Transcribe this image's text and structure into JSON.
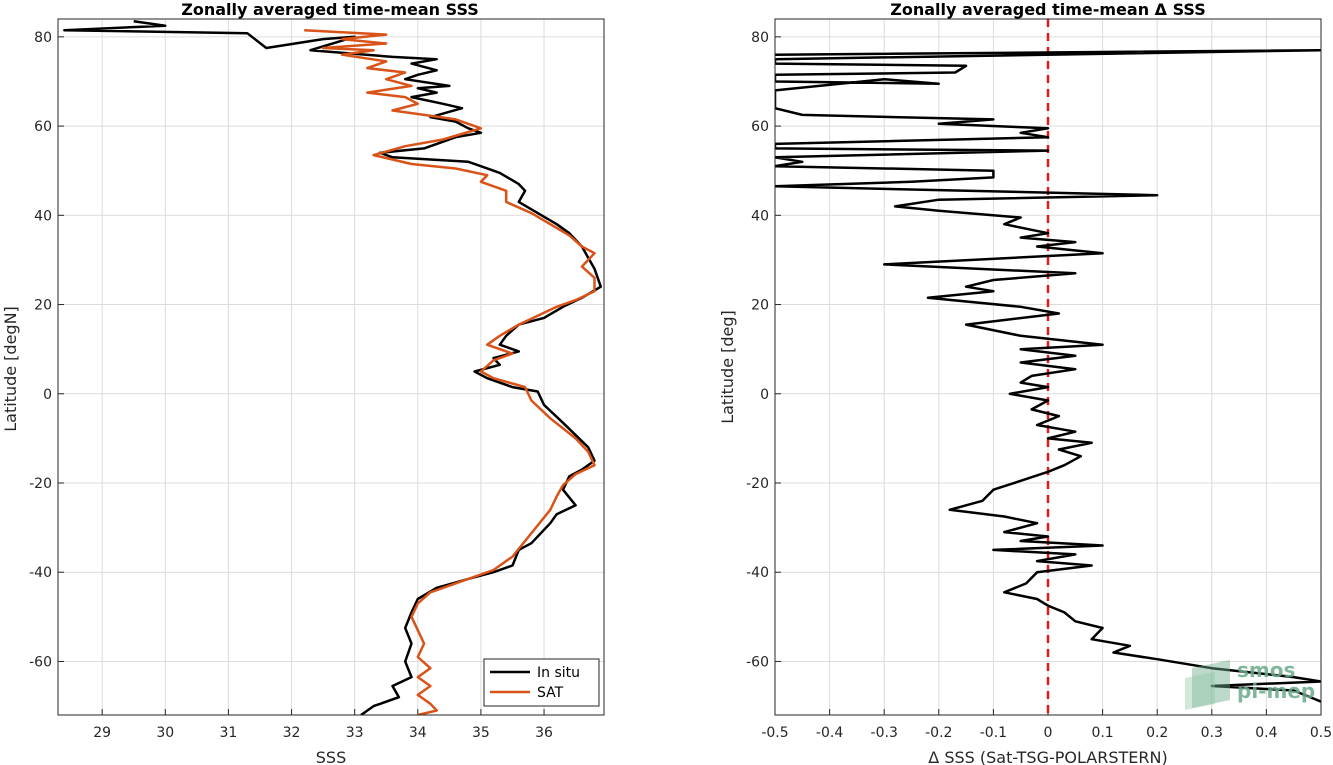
{
  "chart_data": [
    {
      "type": "line",
      "title": "Zonally averaged time-mean SSS",
      "xlabel": "SSS",
      "ylabel": "Latitude [degN]",
      "xlim": [
        28.3,
        36.95
      ],
      "ylim": [
        -72,
        84
      ],
      "xticks": [
        29,
        30,
        31,
        32,
        33,
        34,
        35,
        36
      ],
      "yticks": [
        -60,
        -40,
        -20,
        0,
        20,
        40,
        60,
        80
      ],
      "grid": true,
      "legend_position": "bottom-right",
      "series": [
        {
          "name": "In situ",
          "color": "#000000",
          "points": [
            [
              29.5,
              83.5
            ],
            [
              30.0,
              82.5
            ],
            [
              28.4,
              81.5
            ],
            [
              31.3,
              80.8
            ],
            [
              31.6,
              77.5
            ],
            [
              32.5,
              79.5
            ],
            [
              33.0,
              80.0
            ],
            [
              32.3,
              77.0
            ],
            [
              33.6,
              75.5
            ],
            [
              34.3,
              75.0
            ],
            [
              33.9,
              74.0
            ],
            [
              34.3,
              72.5
            ],
            [
              34.0,
              71.5
            ],
            [
              33.8,
              70.5
            ],
            [
              34.5,
              69.0
            ],
            [
              34.0,
              68.5
            ],
            [
              34.3,
              67.5
            ],
            [
              33.9,
              66.5
            ],
            [
              34.4,
              65.0
            ],
            [
              34.7,
              64.0
            ],
            [
              34.2,
              62.0
            ],
            [
              34.6,
              61.0
            ],
            [
              34.8,
              59.5
            ],
            [
              35.0,
              58.5
            ],
            [
              34.6,
              57.5
            ],
            [
              34.1,
              55.0
            ],
            [
              33.4,
              54.0
            ],
            [
              33.6,
              53.0
            ],
            [
              34.8,
              52.0
            ],
            [
              35.0,
              51.0
            ],
            [
              35.3,
              49.5
            ],
            [
              35.6,
              47.0
            ],
            [
              35.7,
              45.5
            ],
            [
              35.6,
              43.0
            ],
            [
              35.9,
              40.5
            ],
            [
              36.2,
              38.0
            ],
            [
              36.4,
              36.0
            ],
            [
              36.6,
              33.0
            ],
            [
              36.7,
              30.5
            ],
            [
              36.8,
              28.0
            ],
            [
              36.9,
              24.0
            ],
            [
              36.6,
              21.5
            ],
            [
              36.3,
              19.5
            ],
            [
              36.0,
              17.0
            ],
            [
              35.6,
              15.5
            ],
            [
              35.4,
              13.0
            ],
            [
              35.3,
              11.0
            ],
            [
              35.6,
              9.5
            ],
            [
              35.2,
              8.0
            ],
            [
              35.3,
              6.5
            ],
            [
              34.9,
              5.0
            ],
            [
              35.1,
              3.5
            ],
            [
              35.5,
              1.5
            ],
            [
              35.9,
              0.5
            ],
            [
              36.0,
              -2.5
            ],
            [
              36.3,
              -6.5
            ],
            [
              36.7,
              -12.0
            ],
            [
              36.8,
              -15.0
            ],
            [
              36.6,
              -17.0
            ],
            [
              36.4,
              -18.5
            ],
            [
              36.3,
              -21.5
            ],
            [
              36.5,
              -25.0
            ],
            [
              36.2,
              -27.0
            ],
            [
              36.1,
              -29.0
            ],
            [
              35.8,
              -33.5
            ],
            [
              35.6,
              -35.0
            ],
            [
              35.5,
              -38.5
            ],
            [
              35.2,
              -40.0
            ],
            [
              34.8,
              -41.5
            ],
            [
              34.3,
              -43.5
            ],
            [
              34.0,
              -46.0
            ],
            [
              33.9,
              -49.0
            ],
            [
              33.8,
              -52.5
            ],
            [
              33.9,
              -56.0
            ],
            [
              33.8,
              -60.0
            ],
            [
              33.9,
              -63.5
            ],
            [
              33.6,
              -65.5
            ],
            [
              33.7,
              -68.0
            ],
            [
              33.3,
              -70.0
            ],
            [
              33.1,
              -72.0
            ]
          ]
        },
        {
          "name": "SAT",
          "color": "#d95319",
          "points": [
            [
              32.2,
              81.5
            ],
            [
              33.5,
              80.5
            ],
            [
              32.8,
              79.5
            ],
            [
              33.5,
              78.5
            ],
            [
              32.5,
              77.5
            ],
            [
              33.3,
              77.0
            ],
            [
              32.8,
              76.0
            ],
            [
              33.5,
              74.5
            ],
            [
              33.2,
              73.0
            ],
            [
              33.8,
              72.0
            ],
            [
              33.5,
              70.5
            ],
            [
              33.9,
              69.0
            ],
            [
              33.2,
              67.5
            ],
            [
              33.8,
              66.5
            ],
            [
              34.0,
              65.0
            ],
            [
              33.6,
              63.5
            ],
            [
              34.1,
              62.5
            ],
            [
              34.6,
              61.5
            ],
            [
              35.0,
              59.5
            ],
            [
              34.4,
              57.0
            ],
            [
              33.8,
              55.5
            ],
            [
              33.3,
              53.5
            ],
            [
              33.9,
              51.5
            ],
            [
              34.6,
              50.5
            ],
            [
              35.1,
              49.0
            ],
            [
              35.0,
              47.5
            ],
            [
              35.4,
              45.5
            ],
            [
              35.4,
              43.0
            ],
            [
              35.8,
              40.5
            ],
            [
              36.1,
              38.0
            ],
            [
              36.4,
              35.5
            ],
            [
              36.6,
              33.0
            ],
            [
              36.8,
              31.5
            ],
            [
              36.6,
              28.5
            ],
            [
              36.8,
              26.0
            ],
            [
              36.8,
              23.0
            ],
            [
              36.5,
              21.0
            ],
            [
              36.2,
              19.5
            ],
            [
              35.9,
              17.5
            ],
            [
              35.6,
              15.5
            ],
            [
              35.3,
              13.0
            ],
            [
              35.1,
              11.0
            ],
            [
              35.5,
              9.0
            ],
            [
              35.2,
              7.5
            ],
            [
              35.0,
              5.0
            ],
            [
              35.2,
              3.5
            ],
            [
              35.7,
              1.5
            ],
            [
              35.8,
              -1.5
            ],
            [
              36.1,
              -5.5
            ],
            [
              36.5,
              -10.0
            ],
            [
              36.7,
              -13.0
            ],
            [
              36.8,
              -16.0
            ],
            [
              36.5,
              -18.0
            ],
            [
              36.3,
              -20.5
            ],
            [
              36.2,
              -23.0
            ],
            [
              36.1,
              -26.0
            ],
            [
              35.9,
              -29.5
            ],
            [
              35.7,
              -33.0
            ],
            [
              35.5,
              -36.5
            ],
            [
              35.2,
              -39.5
            ],
            [
              34.8,
              -41.5
            ],
            [
              34.2,
              -44.5
            ],
            [
              34.0,
              -47.0
            ],
            [
              33.9,
              -50.0
            ],
            [
              34.0,
              -53.0
            ],
            [
              34.1,
              -56.0
            ],
            [
              34.0,
              -59.0
            ],
            [
              34.2,
              -61.5
            ],
            [
              34.0,
              -63.5
            ],
            [
              34.2,
              -65.5
            ],
            [
              34.0,
              -67.5
            ],
            [
              34.2,
              -69.5
            ],
            [
              34.3,
              -71.0
            ],
            [
              34.0,
              -72.0
            ]
          ]
        }
      ]
    },
    {
      "type": "line",
      "title": "Zonally averaged time-mean Δ SSS",
      "xlabel": "Δ SSS (Sat-TSG-POLARSTERN)",
      "ylabel": "Latitude [deg]",
      "xlim": [
        -0.5,
        0.5
      ],
      "ylim": [
        -72,
        84
      ],
      "xticks": [
        -0.5,
        -0.4,
        -0.3,
        -0.2,
        -0.1,
        0,
        0.1,
        0.2,
        0.3,
        0.4,
        0.5
      ],
      "xtick_labels": [
        "-0.5",
        "-0.4",
        "-0.3",
        "-0.2",
        "-0.1",
        "0",
        "0.1",
        "0.2",
        "0.3",
        "0.4",
        "0.5"
      ],
      "yticks": [
        -60,
        -40,
        -20,
        0,
        20,
        40,
        60,
        80
      ],
      "grid": true,
      "reference_line": {
        "x": 0,
        "color": "#e31a1c",
        "style": "dashed"
      },
      "series": [
        {
          "color": "#000000",
          "points": [
            [
              -0.5,
              76.0
            ],
            [
              0.5,
              77.0
            ],
            [
              -0.5,
              75.0
            ],
            [
              -0.5,
              74.0
            ],
            [
              -0.15,
              73.5
            ],
            [
              -0.17,
              72.0
            ],
            [
              -0.5,
              71.5
            ],
            [
              -0.5,
              70.0
            ],
            [
              -0.2,
              69.5
            ],
            [
              -0.3,
              70.5
            ],
            [
              -0.5,
              68.0
            ],
            [
              -0.5,
              67.0
            ],
            [
              -0.5,
              66.5
            ],
            [
              -0.5,
              64.0
            ],
            [
              -0.45,
              62.5
            ],
            [
              -0.1,
              61.5
            ],
            [
              -0.2,
              60.5
            ],
            [
              0.0,
              59.5
            ],
            [
              -0.05,
              58.5
            ],
            [
              0.0,
              57.5
            ],
            [
              -0.5,
              56.0
            ],
            [
              -0.5,
              55.0
            ],
            [
              0.0,
              54.5
            ],
            [
              -0.5,
              53.0
            ],
            [
              -0.45,
              52.0
            ],
            [
              -0.5,
              51.0
            ],
            [
              -0.1,
              50.0
            ],
            [
              -0.1,
              48.5
            ],
            [
              -0.25,
              47.5
            ],
            [
              -0.5,
              46.5
            ],
            [
              0.2,
              44.5
            ],
            [
              -0.2,
              43.5
            ],
            [
              -0.28,
              42.0
            ],
            [
              -0.2,
              41.0
            ],
            [
              -0.05,
              39.5
            ],
            [
              -0.08,
              38.0
            ],
            [
              0.0,
              36.0
            ],
            [
              -0.05,
              35.0
            ],
            [
              0.05,
              34.0
            ],
            [
              -0.02,
              33.0
            ],
            [
              0.1,
              31.5
            ],
            [
              -0.3,
              29.0
            ],
            [
              0.05,
              27.0
            ],
            [
              -0.1,
              25.5
            ],
            [
              -0.15,
              24.0
            ],
            [
              -0.1,
              23.0
            ],
            [
              -0.22,
              21.5
            ],
            [
              -0.05,
              19.5
            ],
            [
              0.02,
              18.0
            ],
            [
              -0.15,
              15.5
            ],
            [
              -0.05,
              13.0
            ],
            [
              0.1,
              11.0
            ],
            [
              -0.05,
              10.0
            ],
            [
              0.05,
              8.5
            ],
            [
              -0.05,
              7.0
            ],
            [
              0.05,
              5.5
            ],
            [
              -0.03,
              4.0
            ],
            [
              -0.05,
              2.5
            ],
            [
              0.0,
              1.5
            ],
            [
              -0.07,
              0.0
            ],
            [
              0.0,
              -1.5
            ],
            [
              -0.03,
              -3.5
            ],
            [
              0.02,
              -5.0
            ],
            [
              -0.02,
              -7.0
            ],
            [
              0.05,
              -8.5
            ],
            [
              0.0,
              -10.0
            ],
            [
              0.08,
              -11.0
            ],
            [
              0.02,
              -12.5
            ],
            [
              0.06,
              -14.0
            ],
            [
              0.03,
              -16.0
            ],
            [
              0.0,
              -17.5
            ],
            [
              -0.05,
              -19.5
            ],
            [
              -0.1,
              -21.5
            ],
            [
              -0.12,
              -24.0
            ],
            [
              -0.18,
              -26.0
            ],
            [
              -0.08,
              -27.5
            ],
            [
              -0.02,
              -29.0
            ],
            [
              -0.08,
              -31.0
            ],
            [
              0.0,
              -32.0
            ],
            [
              -0.05,
              -33.0
            ],
            [
              0.1,
              -34.0
            ],
            [
              -0.1,
              -35.0
            ],
            [
              0.05,
              -36.0
            ],
            [
              -0.02,
              -37.5
            ],
            [
              0.08,
              -38.5
            ],
            [
              -0.02,
              -40.0
            ],
            [
              -0.04,
              -42.5
            ],
            [
              -0.08,
              -44.5
            ],
            [
              -0.02,
              -46.0
            ],
            [
              0.0,
              -47.5
            ],
            [
              0.03,
              -49.0
            ],
            [
              0.05,
              -51.0
            ],
            [
              0.1,
              -52.5
            ],
            [
              0.08,
              -55.0
            ],
            [
              0.15,
              -56.5
            ],
            [
              0.12,
              -58.0
            ],
            [
              0.2,
              -59.5
            ],
            [
              0.3,
              -61.5
            ],
            [
              0.45,
              -63.5
            ],
            [
              0.5,
              -64.5
            ],
            [
              0.3,
              -65.5
            ],
            [
              0.45,
              -66.5
            ],
            [
              0.5,
              -69.0
            ]
          ]
        }
      ]
    }
  ],
  "legend": {
    "items": [
      {
        "label": "In situ",
        "color": "#000000"
      },
      {
        "label": "SAT",
        "color": "#d95319"
      }
    ]
  },
  "watermark": {
    "line1": "smos",
    "line2": "pi-mep",
    "color": "#6aaa8a"
  }
}
